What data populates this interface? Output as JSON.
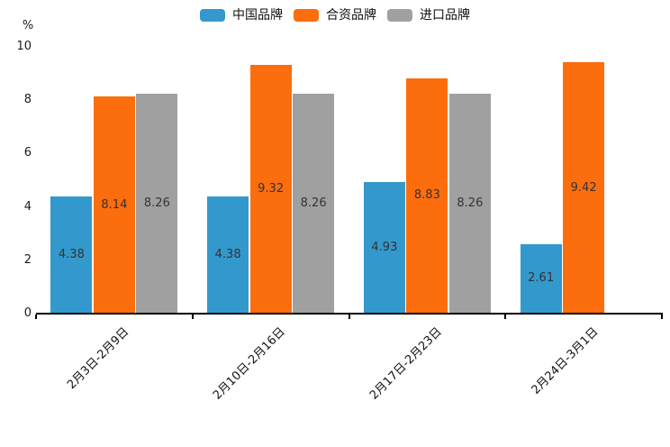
{
  "chart_data": {
    "type": "bar",
    "ylabel": "%",
    "categories": [
      "2月3日-2月9日",
      "2月10日-2月16日",
      "2月17日-2月23日",
      "2月24日-3月1日"
    ],
    "series": [
      {
        "name": "中国品牌",
        "color": "#3399CC",
        "values": [
          4.38,
          4.38,
          4.93,
          2.61
        ]
      },
      {
        "name": "合资品牌",
        "color": "#FC6D0D",
        "values": [
          8.14,
          9.32,
          8.83,
          9.42
        ]
      },
      {
        "name": "进口品牌",
        "color": "#A0A0A0",
        "values": [
          8.26,
          8.26,
          8.26,
          null
        ]
      }
    ],
    "ylim": [
      0,
      10
    ],
    "y_ticks": [
      0,
      2,
      4,
      6,
      8,
      10
    ],
    "legend_position": "top-center",
    "grid": false,
    "value_labels": "inside-middle",
    "x_tick_rotation": 45,
    "colors": {
      "axis": "#000000",
      "tick_label": "#1a1a1a",
      "value_label": "#333333",
      "background": "#ffffff"
    }
  }
}
